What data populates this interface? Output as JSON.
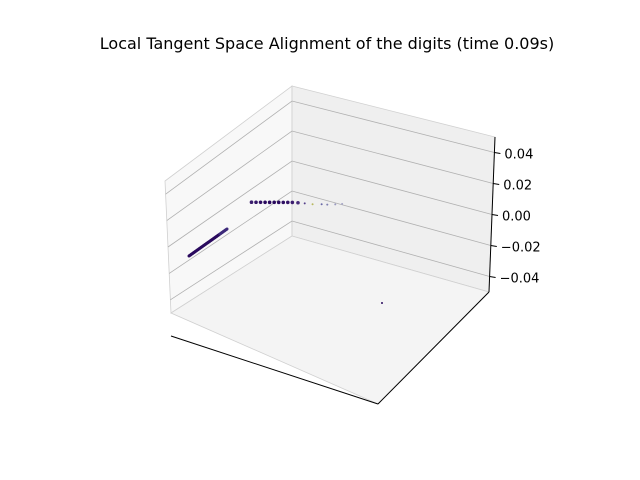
{
  "chart_data": {
    "type": "scatter",
    "projection": "3d",
    "title": "Local Tangent Space Alignment of the digits (time 0.09s)",
    "xlabel": "",
    "ylabel": "",
    "zlabel": "",
    "z_ticks": [
      0.04,
      0.02,
      0.0,
      -0.02,
      -0.04
    ],
    "z_tick_labels": [
      "0.04",
      "0.02",
      "0.00",
      "−0.02",
      "−0.04"
    ],
    "zlim": [
      -0.05,
      0.05
    ],
    "xlim": [
      0,
      1
    ],
    "ylim": [
      0,
      1
    ],
    "x_ticks_shown": false,
    "y_ticks_shown": false,
    "grid": true,
    "colormap": "viridis",
    "points_note_units": "x and y in normalized 0-1 data units, z = 0",
    "series": [
      {
        "points": [
          {
            "x": 0.1,
            "y": 0.52,
            "z": 0,
            "c": "#3b1e6e"
          },
          {
            "x": 0.13,
            "y": 0.53,
            "z": 0,
            "c": "#35186a"
          },
          {
            "x": 0.16,
            "y": 0.54,
            "z": 0,
            "c": "#2f0f63"
          },
          {
            "x": 0.19,
            "y": 0.55,
            "z": 0,
            "c": "#2a0a5e"
          },
          {
            "x": 0.22,
            "y": 0.56,
            "z": 0,
            "c": "#2a0a5e"
          },
          {
            "x": 0.25,
            "y": 0.57,
            "z": 0,
            "c": "#2a0a5e"
          },
          {
            "x": 0.28,
            "y": 0.58,
            "z": 0,
            "c": "#2b0b5f"
          },
          {
            "x": 0.31,
            "y": 0.59,
            "z": 0,
            "c": "#2f1064"
          },
          {
            "x": 0.34,
            "y": 0.6,
            "z": 0,
            "c": "#341568"
          },
          {
            "x": 0.37,
            "y": 0.61,
            "z": 0,
            "c": "#3a1c6e"
          },
          {
            "x": 0.41,
            "y": 0.62,
            "z": 0,
            "c": "#462b7a"
          },
          {
            "x": 0.46,
            "y": 0.63,
            "z": 0,
            "c": "#55408b"
          },
          {
            "x": 0.52,
            "y": 0.64,
            "z": 0,
            "c": "#b8b860"
          },
          {
            "x": 0.58,
            "y": 0.66,
            "z": 0,
            "c": "#6a6aa8"
          },
          {
            "x": 0.62,
            "y": 0.67,
            "z": 0,
            "c": "#7f7fb0"
          },
          {
            "x": 0.67,
            "y": 0.69,
            "z": 0,
            "c": "#9a9ac0"
          },
          {
            "x": 0.71,
            "y": 0.71,
            "z": 0,
            "c": "#a8a8c8"
          },
          {
            "x": 0.98,
            "y": 0.18,
            "z": 0,
            "c": "#2a0a5e"
          }
        ]
      }
    ]
  }
}
